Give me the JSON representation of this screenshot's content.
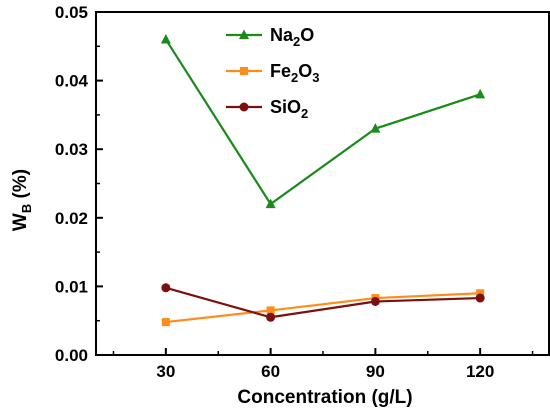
{
  "chart_data": {
    "type": "line",
    "xlabel": "Concentration (g/L)",
    "ylabel": {
      "main": "W",
      "sub": "B",
      "unit": "(%)"
    },
    "x": [
      30,
      60,
      90,
      120
    ],
    "xticks": [
      "30",
      "60",
      "90",
      "120"
    ],
    "xlim": [
      10,
      140
    ],
    "yticks": [
      "0.00",
      "0.01",
      "0.02",
      "0.03",
      "0.04",
      "0.05"
    ],
    "ylim": [
      0,
      0.05
    ],
    "legend_position": "top-center",
    "grid": false,
    "series": [
      {
        "name": "Na2O",
        "label_parts": [
          [
            "Na",
            ""
          ],
          [
            "2",
            "sub"
          ],
          [
            "O",
            ""
          ]
        ],
        "color": "#1a8a1a",
        "marker": "triangle",
        "values": [
          0.046,
          0.022,
          0.033,
          0.038
        ]
      },
      {
        "name": "Fe2O3",
        "label_parts": [
          [
            "Fe",
            ""
          ],
          [
            "2",
            "sub"
          ],
          [
            "O",
            ""
          ],
          [
            "3",
            "sub"
          ]
        ],
        "color": "#ff8c1a",
        "marker": "square",
        "values": [
          0.0048,
          0.0065,
          0.0083,
          0.009
        ]
      },
      {
        "name": "SiO2",
        "label_parts": [
          [
            "SiO",
            ""
          ],
          [
            "2",
            "sub"
          ]
        ],
        "color": "#7a1010",
        "marker": "circle",
        "values": [
          0.0098,
          0.0055,
          0.0078,
          0.0083
        ]
      }
    ]
  }
}
